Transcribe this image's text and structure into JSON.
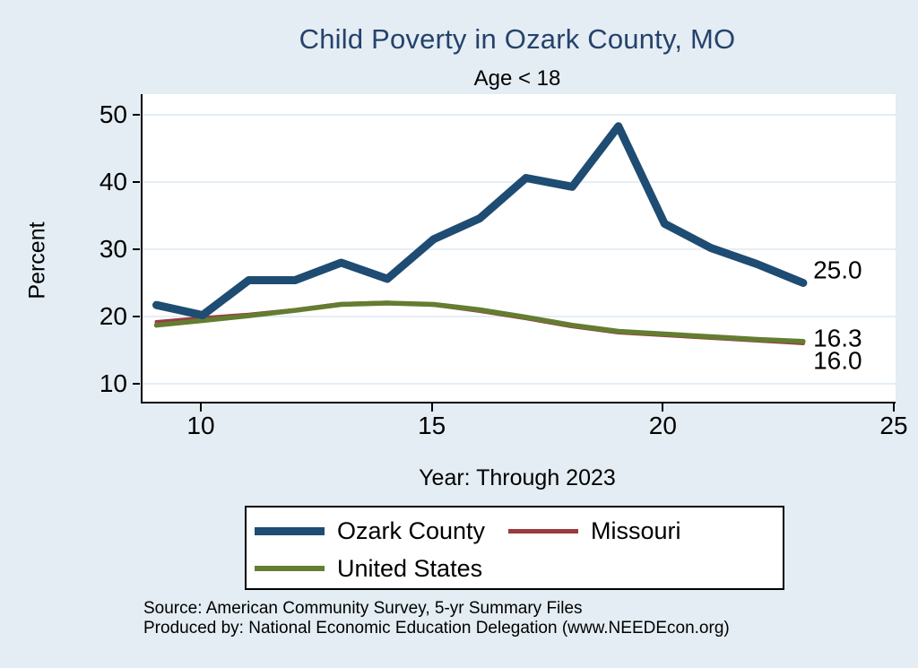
{
  "page": {
    "background": "#e3edf3"
  },
  "title": {
    "text": "Child Poverty in Ozark County, MO",
    "color": "#25426b"
  },
  "subtitle": {
    "text": "Age < 18"
  },
  "chart_data": {
    "type": "line",
    "title": "Child Poverty in Ozark County, MO",
    "subtitle": "Age < 18",
    "xlabel": "Year: Through 2023",
    "ylabel": "Percent",
    "x": [
      9,
      10,
      11,
      12,
      13,
      14,
      15,
      16,
      17,
      18,
      19,
      20,
      21,
      22,
      23
    ],
    "x_ticks": [
      10,
      15,
      20,
      25
    ],
    "y_ticks": [
      10,
      20,
      30,
      40,
      50
    ],
    "xlim": [
      8.7,
      25.0
    ],
    "ylim": [
      7.33,
      53.07
    ],
    "grid": true,
    "grid_color": "#dde9f2",
    "plot_background": "#ffffff",
    "legend_position": "bottom",
    "series": [
      {
        "name": "Ozark County",
        "color": "#1e4c72",
        "line_width": 9,
        "values": [
          21.7,
          20.2,
          25.4,
          25.4,
          28.0,
          25.6,
          31.5,
          34.6,
          40.6,
          39.3,
          48.3,
          33.8,
          30.2,
          27.8,
          25.0
        ]
      },
      {
        "name": "Missouri",
        "color": "#9c3a40",
        "line_width": 4,
        "values": [
          19.2,
          19.8,
          20.3,
          21.0,
          21.9,
          22.1,
          21.7,
          20.8,
          19.7,
          18.5,
          17.6,
          17.2,
          16.8,
          16.4,
          16.0
        ]
      },
      {
        "name": "United States",
        "color": "#637d31",
        "line_width": 5.5,
        "values": [
          18.7,
          19.4,
          20.1,
          20.9,
          21.8,
          22.0,
          21.8,
          21.0,
          19.9,
          18.7,
          17.8,
          17.4,
          17.0,
          16.6,
          16.3
        ]
      }
    ],
    "end_labels": [
      {
        "text": "25.0",
        "x_year": 23.1,
        "y_value": 26.8
      },
      {
        "text": "16.3",
        "x_year": 23.1,
        "y_value": 16.6
      },
      {
        "text": "16.0",
        "x_year": 23.1,
        "y_value": 13.3
      }
    ]
  },
  "legend": {
    "items": [
      {
        "label": "Ozark County",
        "color": "#1e4c72",
        "swatch_height": 9
      },
      {
        "label": "Missouri",
        "color": "#9c3a40",
        "swatch_height": 5
      },
      {
        "label": "United States",
        "color": "#637d31",
        "swatch_height": 6
      }
    ]
  },
  "footer": {
    "line1": "Source: American Community Survey, 5-yr Summary Files",
    "line2": "Produced by: National Economic Education Delegation (www.NEEDEcon.org)"
  }
}
